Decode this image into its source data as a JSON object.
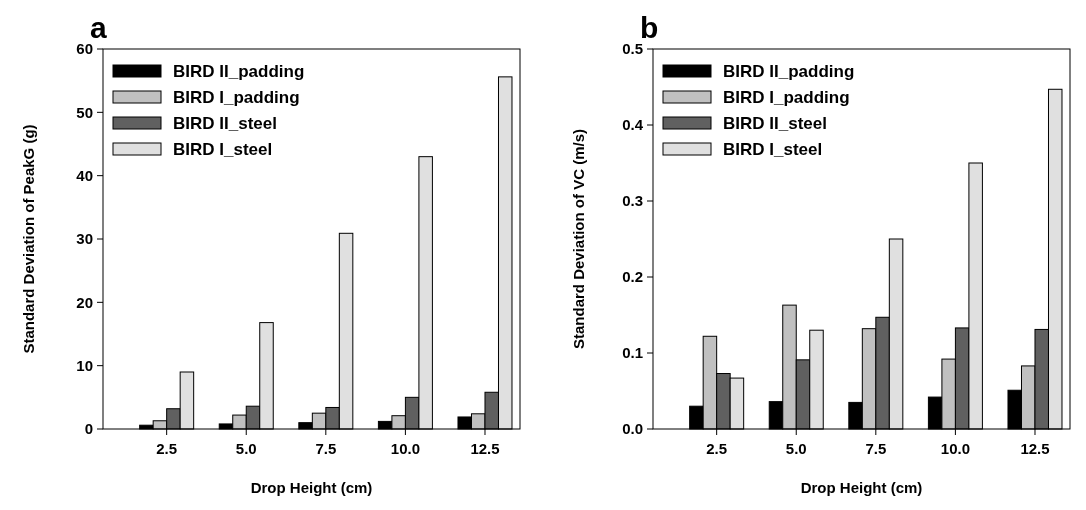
{
  "chart_data": [
    {
      "type": "bar",
      "title": "a",
      "xlabel": "Drop Height (cm)",
      "ylabel": "Standard Deviation of PeakG (g)",
      "categories": [
        "2.5",
        "5.0",
        "7.5",
        "10.0",
        "12.5"
      ],
      "ylim": [
        0,
        60
      ],
      "yticks": [
        0,
        10,
        20,
        30,
        40,
        50,
        60
      ],
      "legend": "top left",
      "series": [
        {
          "name": "BIRD II_padding",
          "color": "#000000",
          "values": [
            0.6,
            0.8,
            1.0,
            1.2,
            1.9
          ]
        },
        {
          "name": "BIRD I_padding",
          "color": "#c0c0c0",
          "values": [
            1.3,
            2.2,
            2.5,
            2.1,
            2.4
          ]
        },
        {
          "name": "BIRD II_steel",
          "color": "#606060",
          "values": [
            3.2,
            3.6,
            3.4,
            5.0,
            5.8
          ]
        },
        {
          "name": "BIRD I_steel",
          "color": "#e0e0e0",
          "values": [
            9.0,
            16.8,
            30.9,
            43.0,
            55.6
          ]
        }
      ]
    },
    {
      "type": "bar",
      "title": "b",
      "xlabel": "Drop Height (cm)",
      "ylabel": "Standard Deviation of VC (m/s)",
      "categories": [
        "2.5",
        "5.0",
        "7.5",
        "10.0",
        "12.5"
      ],
      "ylim": [
        0,
        0.5
      ],
      "yticks": [
        {
          "value": 0,
          "label": "0.0"
        },
        0.1,
        0.2,
        0.3,
        0.4,
        0.5
      ],
      "legend": "top left",
      "series": [
        {
          "name": "BIRD II_padding",
          "color": "#000000",
          "values": [
            0.03,
            0.036,
            0.035,
            0.042,
            0.051
          ]
        },
        {
          "name": "BIRD I_padding",
          "color": "#c0c0c0",
          "values": [
            0.122,
            0.163,
            0.132,
            0.092,
            0.083
          ]
        },
        {
          "name": "BIRD II_steel",
          "color": "#606060",
          "values": [
            0.073,
            0.091,
            0.147,
            0.133,
            0.131
          ]
        },
        {
          "name": "BIRD I_steel",
          "color": "#e0e0e0",
          "values": [
            0.067,
            0.13,
            0.25,
            0.35,
            0.447
          ]
        }
      ]
    }
  ]
}
